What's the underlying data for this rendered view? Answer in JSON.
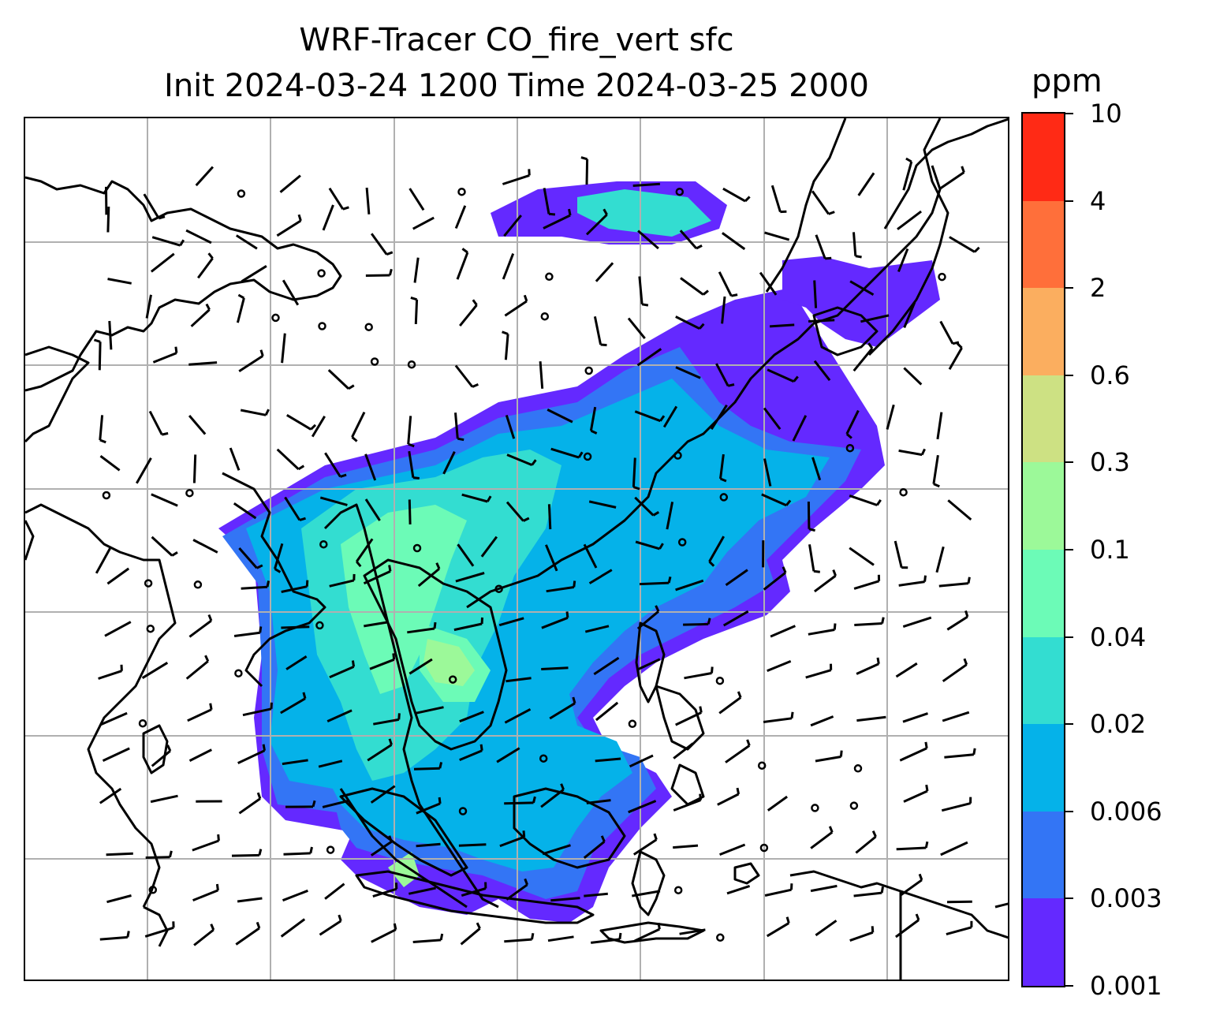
{
  "title": {
    "line1": "WRF-Tracer CO_fire_vert sfc",
    "line2": "Init 2024-03-24 1200 Time 2024-03-25 2000"
  },
  "colorbar": {
    "unit": "ppm",
    "tick_labels": [
      "0.001",
      "0.003",
      "0.006",
      "0.02",
      "0.04",
      "0.1",
      "0.3",
      "0.6",
      "2",
      "4",
      "10"
    ],
    "colors": [
      "#6429ff",
      "#3375f5",
      "#05b2e9",
      "#33ddd1",
      "#6cfbb7",
      "#9cf999",
      "#cde183",
      "#fbae5f",
      "#ff6f3a",
      "#ff2a15"
    ]
  },
  "map": {
    "gridlines": true,
    "coastline_color": "#000000",
    "barb_color": "#000000",
    "grid_color": "#b0b0b0"
  }
}
